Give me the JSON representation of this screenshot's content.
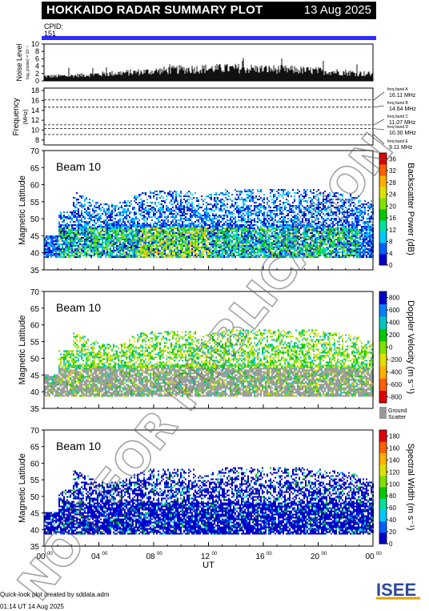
{
  "header": {
    "title": "HOKKAIDO RADAR SUMMARY PLOT",
    "date": "13 Aug 2025",
    "cpid_label": "CPID:",
    "cpid_value": "151"
  },
  "colors": {
    "cpid_bar": "#2b2bff",
    "ground_scatter": "#999999"
  },
  "noise_panel": {
    "ylabel": "Noise Level",
    "ylabel_small": "log₁₀(noise) × 10⁻⁴",
    "yticks": [
      0,
      2,
      4,
      6,
      8,
      10
    ],
    "ylim": [
      0,
      10
    ],
    "profile": {
      "x_hours": [
        0,
        2,
        4,
        6,
        8,
        10,
        12,
        14,
        16,
        18,
        20,
        22,
        24
      ],
      "level": [
        1.2,
        1.4,
        1.8,
        2.2,
        2.6,
        3.1,
        3.3,
        3.4,
        3.2,
        3.0,
        2.7,
        2.3,
        1.8
      ]
    }
  },
  "freq_panel": {
    "ylabel": "Frequency",
    "ylabel_unit": "(MHz)",
    "yticks": [
      8,
      10,
      12,
      14,
      16,
      18
    ],
    "ylim": [
      7,
      18.5
    ],
    "band_lines": [
      16.11,
      14.64,
      11.07,
      10.3,
      9.11
    ],
    "bands": [
      {
        "name": "freq band A",
        "value": "16.11 MHz"
      },
      {
        "name": "freq band B",
        "value": "14.64 MHz"
      },
      {
        "name": "freq band C",
        "value": "11.07 MHz"
      },
      {
        "name": "freq band D",
        "value": "10.30 MHz"
      },
      {
        "name": "freq band E",
        "value": "9.11 MHz"
      }
    ]
  },
  "chart_data": [
    {
      "type": "heatmap",
      "beam_label": "Beam 10",
      "ylabel": "Magnetic Latitude",
      "ylim": [
        35,
        70
      ],
      "yticks": [
        35,
        40,
        45,
        50,
        55,
        60,
        65,
        70
      ],
      "xlim_hours": [
        0,
        24
      ],
      "colorbar_label": "Backscatter Power (dB)",
      "colorbar_ticks": [
        0,
        4,
        8,
        12,
        16,
        20,
        24,
        28,
        32,
        36
      ],
      "colorbar_range": [
        0,
        38
      ],
      "colorbar_colors": [
        "#0000c8",
        "#0060ff",
        "#00c8ff",
        "#00e0a0",
        "#00c800",
        "#80e000",
        "#e0e000",
        "#ffb000",
        "#ff6000",
        "#e00000"
      ]
    },
    {
      "type": "heatmap",
      "beam_label": "Beam 10",
      "ylabel": "Magnetic Latitude",
      "ylim": [
        35,
        70
      ],
      "yticks": [
        35,
        40,
        45,
        50,
        55,
        60,
        65,
        70
      ],
      "xlim_hours": [
        0,
        24
      ],
      "colorbar_label": "Doppler Velocity (m s⁻¹)",
      "colorbar_ticks": [
        800,
        600,
        400,
        200,
        0,
        -200,
        -400,
        -600,
        -800
      ],
      "colorbar_range": [
        -900,
        900
      ],
      "colorbar_colors": [
        "#e00000",
        "#ff6000",
        "#ffb000",
        "#e0e000",
        "#80e000",
        "#00c800",
        "#00c8c0",
        "#0080ff",
        "#0000c8"
      ],
      "ground_scatter_label": [
        "Ground",
        "Scatter"
      ]
    },
    {
      "type": "heatmap",
      "beam_label": "Beam 10",
      "ylabel": "Magnetic Latitude",
      "ylim": [
        35,
        70
      ],
      "yticks": [
        35,
        40,
        45,
        50,
        55,
        60,
        65,
        70
      ],
      "xlim_hours": [
        0,
        24
      ],
      "xlabel": "UT",
      "xticks": [
        "00",
        "04",
        "08",
        "12",
        "16",
        "20",
        "00"
      ],
      "xtick_superscript": "00",
      "colorbar_label": "Spectral Width (m s⁻¹)",
      "colorbar_ticks": [
        0,
        20,
        40,
        60,
        80,
        100,
        120,
        140,
        160,
        180
      ],
      "colorbar_range": [
        0,
        190
      ],
      "colorbar_colors": [
        "#0000c8",
        "#0060ff",
        "#00c8ff",
        "#00e0a0",
        "#00c800",
        "#80e000",
        "#e0e000",
        "#ffb000",
        "#ff6000",
        "#e00000"
      ]
    }
  ],
  "footer": {
    "line1": "Quick-look plot created by sddata.adm",
    "line2": "01:14 UT 14 Aug 2025",
    "logo_text": "ISEE"
  },
  "watermark": "NOT FOR PUBLICATION"
}
